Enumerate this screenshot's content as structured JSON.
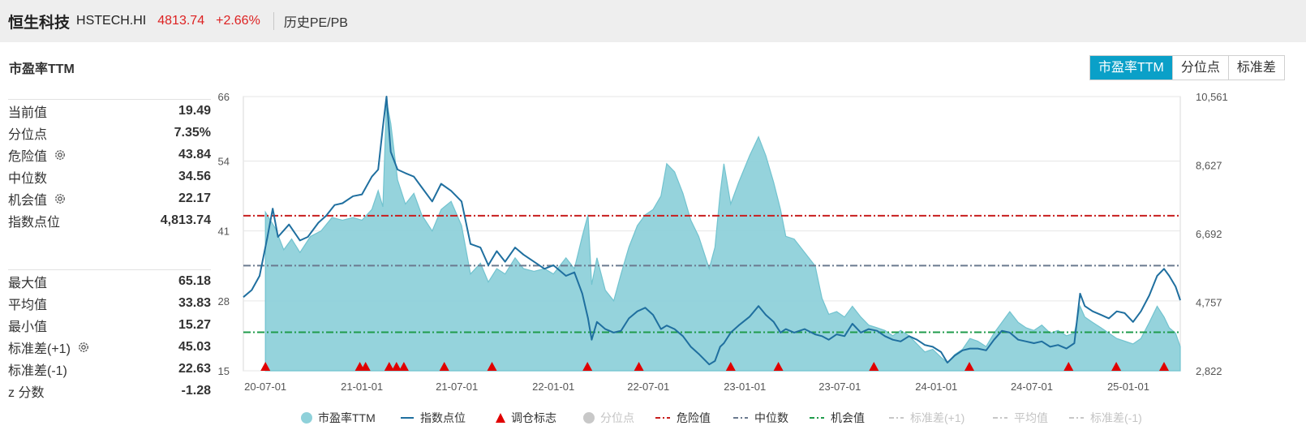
{
  "header": {
    "name": "恒生科技",
    "code": "HSTECH.HI",
    "price": "4813.74",
    "change": "+2.66%",
    "history_link": "历史PE/PB"
  },
  "section_title": "市盈率TTM",
  "tabs": [
    {
      "label": "市盈率TTM",
      "active": true
    },
    {
      "label": "分位点",
      "active": false
    },
    {
      "label": "标准差",
      "active": false
    }
  ],
  "stats_top": [
    {
      "label": "当前值",
      "value": "19.49",
      "gear": false
    },
    {
      "label": "分位点",
      "value": "7.35%",
      "gear": false
    },
    {
      "label": "危险值",
      "value": "43.84",
      "gear": true
    },
    {
      "label": "中位数",
      "value": "34.56",
      "gear": false
    },
    {
      "label": "机会值",
      "value": "22.17",
      "gear": true
    },
    {
      "label": "指数点位",
      "value": "4,813.74",
      "gear": false
    }
  ],
  "stats_bottom": [
    {
      "label": "最大值",
      "value": "65.18",
      "gear": false
    },
    {
      "label": "平均值",
      "value": "33.83",
      "gear": false
    },
    {
      "label": "最小值",
      "value": "15.27",
      "gear": false
    },
    {
      "label": "标准差(+1)",
      "value": "45.03",
      "gear": true
    },
    {
      "label": "标准差(-1)",
      "value": "22.63",
      "gear": false
    },
    {
      "label": "z 分数",
      "value": "-1.28",
      "gear": false
    }
  ],
  "chart_data": {
    "type": "area",
    "x_ticks": [
      "20-07-01",
      "21-01-01",
      "21-07-01",
      "22-01-01",
      "22-07-01",
      "23-01-01",
      "23-07-01",
      "24-01-01",
      "24-07-01",
      "25-01-01"
    ],
    "x_range": [
      "2020-05-20",
      "2025-04-10"
    ],
    "y_left": {
      "ticks": [
        15,
        28,
        41,
        54,
        66
      ],
      "range": [
        15,
        66
      ]
    },
    "y_right": {
      "ticks": [
        "2,822",
        "4,757",
        "6,692",
        "8,627",
        "10,561"
      ],
      "range": [
        2822,
        10561
      ]
    },
    "colors": {
      "pe_fill": "#8fd1da",
      "pe_line": "#72c3cf",
      "index": "#1f6f9f",
      "danger": "#c81e1e",
      "median": "#6b7a8f",
      "opportunity": "#1f9b4b",
      "grid": "#e6e6e6",
      "marker": "#e00000",
      "inactive": "#c8c8c8"
    },
    "ref_lines": {
      "danger": 43.84,
      "median": 34.56,
      "opportunity": 22.17
    },
    "pe_series": [
      [
        "2020-07-01",
        15
      ],
      [
        "2020-07-01",
        44.5
      ],
      [
        "2020-07-20",
        41.5
      ],
      [
        "2020-08-05",
        37.5
      ],
      [
        "2020-08-20",
        39.5
      ],
      [
        "2020-09-05",
        37
      ],
      [
        "2020-09-25",
        40
      ],
      [
        "2020-10-15",
        41
      ],
      [
        "2020-11-05",
        43.5
      ],
      [
        "2020-11-25",
        43
      ],
      [
        "2020-12-15",
        43.5
      ],
      [
        "2021-01-01",
        43
      ],
      [
        "2021-01-20",
        45
      ],
      [
        "2021-02-01",
        48.5
      ],
      [
        "2021-02-10",
        45.5
      ],
      [
        "2021-02-17",
        65.2
      ],
      [
        "2021-02-25",
        61
      ],
      [
        "2021-03-10",
        50.5
      ],
      [
        "2021-03-25",
        46
      ],
      [
        "2021-04-10",
        48
      ],
      [
        "2021-04-25",
        44
      ],
      [
        "2021-05-15",
        41
      ],
      [
        "2021-06-01",
        45
      ],
      [
        "2021-06-20",
        46.5
      ],
      [
        "2021-07-10",
        42
      ],
      [
        "2021-07-27",
        33
      ],
      [
        "2021-08-15",
        35
      ],
      [
        "2021-08-30",
        31.5
      ],
      [
        "2021-09-15",
        34
      ],
      [
        "2021-10-01",
        33
      ],
      [
        "2021-10-20",
        36
      ],
      [
        "2021-11-05",
        34
      ],
      [
        "2021-11-25",
        33.5
      ],
      [
        "2021-12-15",
        34
      ],
      [
        "2022-01-01",
        33
      ],
      [
        "2022-01-25",
        36
      ],
      [
        "2022-02-10",
        34
      ],
      [
        "2022-02-25",
        40
      ],
      [
        "2022-03-08",
        44
      ],
      [
        "2022-03-15",
        31
      ],
      [
        "2022-03-25",
        36
      ],
      [
        "2022-04-10",
        30
      ],
      [
        "2022-04-26",
        28
      ],
      [
        "2022-05-10",
        33
      ],
      [
        "2022-05-25",
        38
      ],
      [
        "2022-06-10",
        42
      ],
      [
        "2022-06-25",
        44
      ],
      [
        "2022-07-10",
        45
      ],
      [
        "2022-07-25",
        47.5
      ],
      [
        "2022-08-05",
        53.5
      ],
      [
        "2022-08-20",
        52
      ],
      [
        "2022-09-05",
        48
      ],
      [
        "2022-09-20",
        43
      ],
      [
        "2022-10-05",
        40
      ],
      [
        "2022-10-25",
        34
      ],
      [
        "2022-11-05",
        38
      ],
      [
        "2022-11-15",
        48
      ],
      [
        "2022-11-22",
        53.5
      ],
      [
        "2022-12-05",
        46
      ],
      [
        "2022-12-20",
        50
      ],
      [
        "2023-01-10",
        55
      ],
      [
        "2023-01-27",
        58.5
      ],
      [
        "2023-02-10",
        55
      ],
      [
        "2023-02-25",
        50
      ],
      [
        "2023-03-10",
        45
      ],
      [
        "2023-03-20",
        40
      ],
      [
        "2023-04-05",
        39.5
      ],
      [
        "2023-04-25",
        37
      ],
      [
        "2023-05-15",
        34.5
      ],
      [
        "2023-05-28",
        28.5
      ],
      [
        "2023-06-10",
        25.5
      ],
      [
        "2023-06-25",
        26
      ],
      [
        "2023-07-10",
        25
      ],
      [
        "2023-07-25",
        27
      ],
      [
        "2023-08-10",
        25
      ],
      [
        "2023-08-25",
        23.5
      ],
      [
        "2023-09-10",
        23
      ],
      [
        "2023-09-25",
        22.5
      ],
      [
        "2023-10-10",
        21.5
      ],
      [
        "2023-10-25",
        22.5
      ],
      [
        "2023-11-10",
        21.5
      ],
      [
        "2023-11-25",
        20
      ],
      [
        "2023-12-10",
        18.5
      ],
      [
        "2023-12-25",
        19
      ],
      [
        "2024-01-10",
        17.5
      ],
      [
        "2024-01-22",
        16.5
      ],
      [
        "2024-02-05",
        18
      ],
      [
        "2024-02-20",
        19
      ],
      [
        "2024-03-05",
        21
      ],
      [
        "2024-03-20",
        20.5
      ],
      [
        "2024-04-05",
        19.5
      ],
      [
        "2024-04-20",
        22
      ],
      [
        "2024-05-05",
        24
      ],
      [
        "2024-05-20",
        26
      ],
      [
        "2024-06-05",
        24
      ],
      [
        "2024-06-20",
        23
      ],
      [
        "2024-07-05",
        22.5
      ],
      [
        "2024-07-20",
        23.5
      ],
      [
        "2024-08-05",
        22
      ],
      [
        "2024-08-20",
        22.5
      ],
      [
        "2024-09-05",
        21.5
      ],
      [
        "2024-09-20",
        22
      ],
      [
        "2024-10-01",
        27
      ],
      [
        "2024-10-10",
        25
      ],
      [
        "2024-10-25",
        24
      ],
      [
        "2024-11-10",
        23
      ],
      [
        "2024-11-25",
        22
      ],
      [
        "2024-12-10",
        21
      ],
      [
        "2024-12-25",
        20.5
      ],
      [
        "2025-01-10",
        20
      ],
      [
        "2025-01-25",
        21
      ],
      [
        "2025-02-10",
        24
      ],
      [
        "2025-02-25",
        27
      ],
      [
        "2025-03-10",
        25
      ],
      [
        "2025-03-20",
        23
      ],
      [
        "2025-04-01",
        22
      ],
      [
        "2025-04-10",
        19.5
      ],
      [
        "2025-04-10",
        15
      ]
    ],
    "index_series": [
      [
        "2020-05-20",
        4900
      ],
      [
        "2020-06-05",
        5100
      ],
      [
        "2020-06-20",
        5500
      ],
      [
        "2020-07-05",
        6600
      ],
      [
        "2020-07-15",
        7400
      ],
      [
        "2020-07-25",
        6600
      ],
      [
        "2020-08-15",
        6950
      ],
      [
        "2020-09-05",
        6500
      ],
      [
        "2020-09-20",
        6600
      ],
      [
        "2020-10-10",
        7000
      ],
      [
        "2020-10-25",
        7200
      ],
      [
        "2020-11-10",
        7500
      ],
      [
        "2020-11-25",
        7550
      ],
      [
        "2020-12-15",
        7750
      ],
      [
        "2021-01-01",
        7800
      ],
      [
        "2021-01-20",
        8300
      ],
      [
        "2021-02-01",
        8500
      ],
      [
        "2021-02-10",
        9700
      ],
      [
        "2021-02-17",
        10561
      ],
      [
        "2021-02-25",
        9000
      ],
      [
        "2021-03-10",
        8500
      ],
      [
        "2021-03-25",
        8400
      ],
      [
        "2021-04-10",
        8300
      ],
      [
        "2021-04-25",
        8000
      ],
      [
        "2021-05-15",
        7600
      ],
      [
        "2021-06-01",
        8100
      ],
      [
        "2021-06-20",
        7900
      ],
      [
        "2021-07-10",
        7600
      ],
      [
        "2021-07-27",
        6400
      ],
      [
        "2021-08-15",
        6300
      ],
      [
        "2021-08-30",
        5800
      ],
      [
        "2021-09-15",
        6200
      ],
      [
        "2021-10-01",
        5900
      ],
      [
        "2021-10-20",
        6300
      ],
      [
        "2021-11-05",
        6100
      ],
      [
        "2021-11-25",
        5900
      ],
      [
        "2021-12-15",
        5700
      ],
      [
        "2022-01-01",
        5800
      ],
      [
        "2022-01-25",
        5500
      ],
      [
        "2022-02-10",
        5600
      ],
      [
        "2022-02-25",
        5000
      ],
      [
        "2022-03-08",
        4300
      ],
      [
        "2022-03-15",
        3700
      ],
      [
        "2022-03-25",
        4200
      ],
      [
        "2022-04-10",
        4000
      ],
      [
        "2022-04-26",
        3900
      ],
      [
        "2022-05-10",
        3950
      ],
      [
        "2022-05-25",
        4300
      ],
      [
        "2022-06-10",
        4500
      ],
      [
        "2022-06-25",
        4600
      ],
      [
        "2022-07-10",
        4400
      ],
      [
        "2022-07-25",
        4000
      ],
      [
        "2022-08-05",
        4100
      ],
      [
        "2022-08-20",
        4000
      ],
      [
        "2022-09-05",
        3800
      ],
      [
        "2022-09-20",
        3500
      ],
      [
        "2022-10-05",
        3300
      ],
      [
        "2022-10-25",
        3000
      ],
      [
        "2022-11-05",
        3100
      ],
      [
        "2022-11-15",
        3500
      ],
      [
        "2022-11-22",
        3600
      ],
      [
        "2022-12-05",
        3900
      ],
      [
        "2022-12-20",
        4100
      ],
      [
        "2023-01-10",
        4350
      ],
      [
        "2023-01-27",
        4650
      ],
      [
        "2023-02-10",
        4400
      ],
      [
        "2023-02-25",
        4200
      ],
      [
        "2023-03-10",
        3900
      ],
      [
        "2023-03-20",
        4000
      ],
      [
        "2023-04-05",
        3900
      ],
      [
        "2023-04-25",
        4000
      ],
      [
        "2023-05-15",
        3850
      ],
      [
        "2023-05-28",
        3800
      ],
      [
        "2023-06-10",
        3700
      ],
      [
        "2023-06-25",
        3850
      ],
      [
        "2023-07-10",
        3800
      ],
      [
        "2023-07-25",
        4150
      ],
      [
        "2023-08-10",
        3900
      ],
      [
        "2023-08-25",
        4000
      ],
      [
        "2023-09-10",
        3950
      ],
      [
        "2023-09-25",
        3800
      ],
      [
        "2023-10-10",
        3700
      ],
      [
        "2023-10-25",
        3650
      ],
      [
        "2023-11-10",
        3800
      ],
      [
        "2023-11-25",
        3700
      ],
      [
        "2023-12-10",
        3550
      ],
      [
        "2023-12-25",
        3500
      ],
      [
        "2024-01-10",
        3350
      ],
      [
        "2024-01-22",
        3050
      ],
      [
        "2024-02-05",
        3250
      ],
      [
        "2024-02-20",
        3400
      ],
      [
        "2024-03-05",
        3450
      ],
      [
        "2024-03-20",
        3450
      ],
      [
        "2024-04-05",
        3400
      ],
      [
        "2024-04-20",
        3700
      ],
      [
        "2024-05-05",
        3950
      ],
      [
        "2024-05-20",
        3900
      ],
      [
        "2024-06-05",
        3700
      ],
      [
        "2024-06-20",
        3650
      ],
      [
        "2024-07-05",
        3600
      ],
      [
        "2024-07-20",
        3650
      ],
      [
        "2024-08-05",
        3500
      ],
      [
        "2024-08-20",
        3550
      ],
      [
        "2024-09-05",
        3450
      ],
      [
        "2024-09-20",
        3600
      ],
      [
        "2024-10-01",
        5000
      ],
      [
        "2024-10-10",
        4650
      ],
      [
        "2024-10-25",
        4500
      ],
      [
        "2024-11-10",
        4400
      ],
      [
        "2024-11-25",
        4300
      ],
      [
        "2024-12-10",
        4500
      ],
      [
        "2024-12-25",
        4450
      ],
      [
        "2025-01-10",
        4200
      ],
      [
        "2025-01-25",
        4500
      ],
      [
        "2025-02-10",
        4950
      ],
      [
        "2025-02-25",
        5500
      ],
      [
        "2025-03-10",
        5700
      ],
      [
        "2025-03-20",
        5500
      ],
      [
        "2025-04-01",
        5200
      ],
      [
        "2025-04-10",
        4813.74
      ]
    ],
    "rebalance_dates": [
      "2020-07-01",
      "2020-12-28",
      "2021-01-08",
      "2021-02-22",
      "2021-03-08",
      "2021-03-22",
      "2021-06-07",
      "2021-09-06",
      "2022-03-07",
      "2022-06-13",
      "2022-12-05",
      "2023-03-06",
      "2023-09-04",
      "2024-03-04",
      "2024-09-09",
      "2024-12-09",
      "2025-03-10"
    ],
    "legend": [
      {
        "label": "市盈率TTM",
        "style": "dot",
        "color": "#8fd1da",
        "active": true
      },
      {
        "label": "指数点位",
        "style": "line",
        "color": "#1f6f9f",
        "active": true
      },
      {
        "label": "调仓标志",
        "style": "triangle",
        "color": "#e00000",
        "active": true
      },
      {
        "label": "分位点",
        "style": "dot",
        "color": "#c8c8c8",
        "active": false
      },
      {
        "label": "危险值",
        "style": "dashdot",
        "color": "#c81e1e",
        "active": true
      },
      {
        "label": "中位数",
        "style": "dashdot",
        "color": "#6b7a8f",
        "active": true
      },
      {
        "label": "机会值",
        "style": "dashdot",
        "color": "#1f9b4b",
        "active": true
      },
      {
        "label": "标准差(+1)",
        "style": "dashdot",
        "color": "#c8c8c8",
        "active": false
      },
      {
        "label": "平均值",
        "style": "dashdot",
        "color": "#c8c8c8",
        "active": false
      },
      {
        "label": "标准差(-1)",
        "style": "dashdot",
        "color": "#c8c8c8",
        "active": false
      }
    ]
  }
}
